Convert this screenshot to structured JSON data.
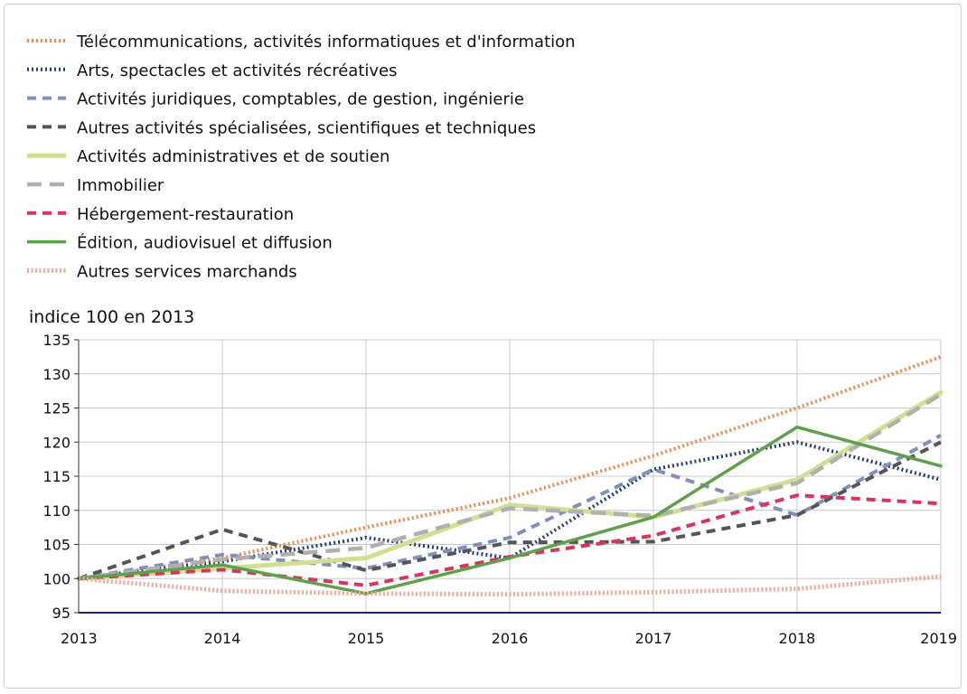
{
  "chart_data": {
    "type": "line",
    "ylabel": "indice 100 en 2013",
    "x": [
      2013,
      2014,
      2015,
      2016,
      2017,
      2018,
      2019
    ],
    "xlim": [
      2013,
      2019
    ],
    "ylim": [
      95,
      135
    ],
    "yticks": [
      95,
      100,
      105,
      110,
      115,
      120,
      125,
      130,
      135
    ],
    "grid": true,
    "legend_position": "top-left",
    "series": [
      {
        "name": "Télécommunications, activités informatiques et d'information",
        "color": "#f0874a",
        "style": "dotted",
        "values": [
          100,
          103,
          107.5,
          111.8,
          118,
          125,
          132.5
        ]
      },
      {
        "name": "Arts, spectacles et activités récréatives",
        "color": "#1f3e7a",
        "style": "dotted",
        "values": [
          100,
          102.5,
          106,
          103,
          116,
          120,
          114.5
        ]
      },
      {
        "name": "Activités juridiques, comptables, de gestion, ingénierie",
        "color": "#7f8fbf",
        "style": "dashed",
        "values": [
          100,
          103.5,
          101.5,
          106,
          116,
          109.3,
          121
        ]
      },
      {
        "name": "Autres activités spécialisées, scientifiques et techniques",
        "color": "#555555",
        "style": "dashed",
        "values": [
          100,
          107.2,
          101.2,
          105.3,
          105.4,
          109.3,
          120
        ]
      },
      {
        "name": "Activités administratives et de soutien",
        "color": "#cfe090",
        "style": "solid-thick",
        "values": [
          100,
          101.5,
          103,
          110.8,
          109,
          114.5,
          127.3
        ]
      },
      {
        "name": "Immobilier",
        "color": "#b0b0b0",
        "style": "dashed-long",
        "values": [
          100,
          102.8,
          104.5,
          110.3,
          109.2,
          114,
          127
        ]
      },
      {
        "name": "Hébergement-restauration",
        "color": "#d9345a",
        "style": "dashed",
        "values": [
          100,
          101.3,
          99,
          103.2,
          106.3,
          112.2,
          111
        ]
      },
      {
        "name": "Édition, audiovisuel et diffusion",
        "color": "#5fa04a",
        "style": "solid",
        "values": [
          100,
          102,
          97.8,
          103,
          109,
          122.2,
          116.5
        ]
      },
      {
        "name": "Autres services marchands",
        "color": "#f2a898",
        "style": "dotted-thick",
        "values": [
          100,
          98.2,
          97.8,
          97.7,
          98,
          98.5,
          100.3
        ]
      }
    ]
  }
}
